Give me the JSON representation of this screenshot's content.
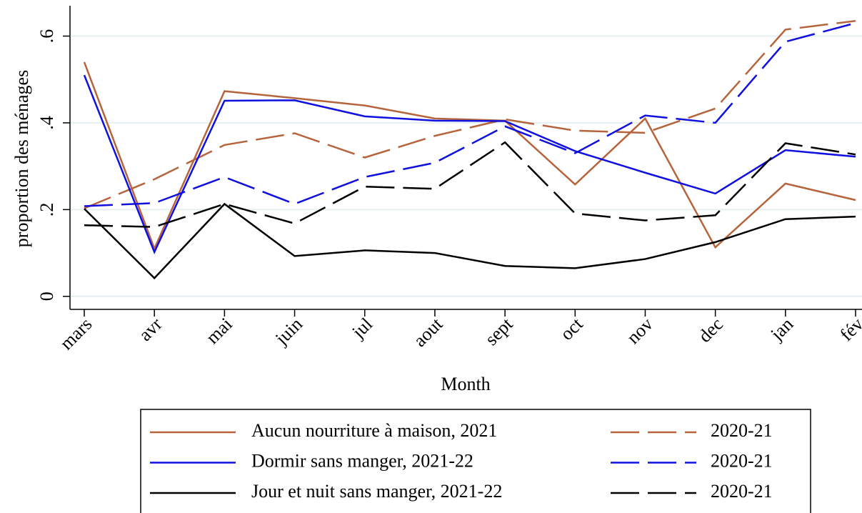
{
  "chart_data": {
    "type": "line",
    "categories": [
      "mars",
      "avr",
      "mai",
      "juin",
      "jul",
      "aout",
      "sept",
      "oct",
      "nov",
      "dec",
      "jan",
      "fév"
    ],
    "x_label": "Month",
    "y_label": "proportion des ménages",
    "ylim": [
      -0.03,
      0.67
    ],
    "yticks": [
      0,
      {
        "value": 0.2,
        "label": ".2"
      },
      {
        "value": 0.4,
        "label": ".4"
      },
      {
        "value": 0.6,
        "label": ".6"
      }
    ],
    "grid": true,
    "series": [
      {
        "name": "Aucun nourriture à maison, 2021",
        "color": "#b5643c",
        "dash": false,
        "values": [
          0.54,
          0.11,
          0.473,
          0.457,
          0.44,
          0.41,
          0.405,
          0.258,
          0.41,
          0.113,
          0.26,
          0.222
        ]
      },
      {
        "name": "2020-21",
        "color": "#b5643c",
        "dash": true,
        "values": [
          0.203,
          0.27,
          0.349,
          0.376,
          0.32,
          0.37,
          0.408,
          0.382,
          0.377,
          0.433,
          0.615,
          0.635
        ]
      },
      {
        "name": "Dormir sans manger, 2021-22",
        "color": "#1010e0",
        "dash": false,
        "values": [
          0.51,
          0.102,
          0.451,
          0.452,
          0.415,
          0.405,
          0.404,
          0.335,
          0.285,
          0.237,
          0.337,
          0.322
        ]
      },
      {
        "name": "2020-21",
        "color": "#1010e0",
        "dash": true,
        "values": [
          0.208,
          0.215,
          0.275,
          0.213,
          0.275,
          0.308,
          0.392,
          0.33,
          0.417,
          0.4,
          0.587,
          0.63
        ]
      },
      {
        "name": "Jour et nuit sans manger, 2021-22",
        "color": "#000000",
        "dash": false,
        "values": [
          0.202,
          0.042,
          0.213,
          0.093,
          0.106,
          0.1,
          0.07,
          0.065,
          0.086,
          0.125,
          0.178,
          0.184
        ]
      },
      {
        "name": "2020-21",
        "color": "#000000",
        "dash": true,
        "values": [
          0.164,
          0.16,
          0.213,
          0.168,
          0.253,
          0.248,
          0.355,
          0.191,
          0.175,
          0.187,
          0.353,
          0.327
        ]
      }
    ]
  }
}
